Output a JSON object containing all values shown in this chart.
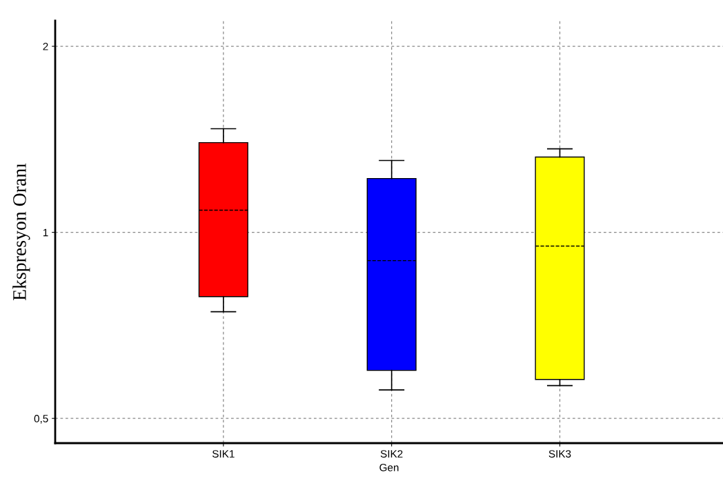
{
  "chart_data": {
    "type": "box",
    "xlabel": "Gen",
    "ylabel": "Ekspresyon Oranı",
    "categories": [
      "SIK1",
      "SIK2",
      "SIK3"
    ],
    "colors": [
      "#ff0000",
      "#0000ff",
      "#ffff00"
    ],
    "boxes": [
      {
        "low": 0.744,
        "q1": 0.787,
        "median": 1.086,
        "q3": 1.397,
        "high": 1.471
      },
      {
        "low": 0.556,
        "q1": 0.598,
        "median": 0.9,
        "q3": 1.222,
        "high": 1.307
      },
      {
        "low": 0.565,
        "q1": 0.578,
        "median": 0.95,
        "q3": 1.324,
        "high": 1.365
      }
    ],
    "log": true,
    "ylim": [
      0.456,
      2.2
    ],
    "yticks": [
      {
        "value": 0.5,
        "label": "0,5"
      },
      1,
      2
    ],
    "grid": true
  }
}
